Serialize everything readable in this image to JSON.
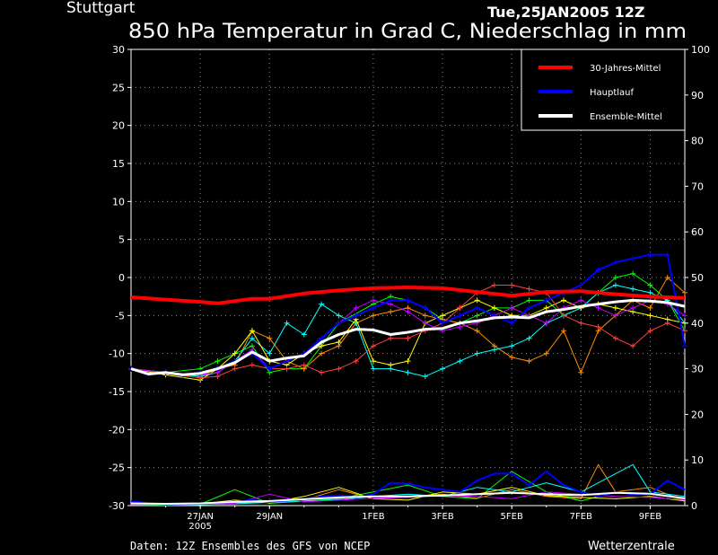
{
  "header": {
    "station": "Stuttgart",
    "run": "Tue,25JAN2005 12Z",
    "title": "850 hPa Temperatur in Grad C, Niederschlag in mm"
  },
  "footer": {
    "source": "Daten: 12Z Ensembles des GFS von NCEP",
    "brand": "Wetterzentrale"
  },
  "chart_data": {
    "type": "line",
    "grid": true,
    "legend_position": "top-right",
    "y_left": {
      "min": -30,
      "max": 30,
      "ticks": [
        30,
        25,
        20,
        15,
        10,
        5,
        0,
        -5,
        -10,
        -15,
        -20,
        -25,
        -30
      ]
    },
    "y_right": {
      "min": 0,
      "max": 100,
      "ticks": [
        100,
        90,
        80,
        70,
        60,
        50,
        40,
        30,
        20,
        10,
        0
      ]
    },
    "x": {
      "min": 0,
      "max": 16,
      "unit": "days from 25JAN 12Z"
    },
    "x_ticks": [
      {
        "at": 2,
        "label": "27JAN",
        "sub": "2005"
      },
      {
        "at": 4,
        "label": "29JAN",
        "sub": ""
      },
      {
        "at": 7,
        "label": "1FEB",
        "sub": ""
      },
      {
        "at": 9,
        "label": "3FEB",
        "sub": ""
      },
      {
        "at": 11,
        "label": "5FEB",
        "sub": ""
      },
      {
        "at": 13,
        "label": "7FEB",
        "sub": ""
      },
      {
        "at": 15,
        "label": "9FEB",
        "sub": ""
      }
    ],
    "legend": [
      {
        "name": "30-Jahres-Mittel",
        "color": "#ff0000"
      },
      {
        "name": "Hauptlauf",
        "color": "#0000ff"
      },
      {
        "name": "Ensemble-Mittel",
        "color": "#ffffff"
      }
    ],
    "series": [
      {
        "name": "30-Jahres-Mittel",
        "color": "#ff0000",
        "width": 4,
        "axis": "left",
        "markers": false,
        "x": [
          0,
          1,
          2,
          2.5,
          3,
          3.5,
          4,
          5,
          6,
          7,
          8,
          9,
          10,
          11,
          12,
          13,
          14,
          15,
          16
        ],
        "y": [
          -2.6,
          -2.9,
          -3.2,
          -3.4,
          -3.1,
          -2.8,
          -2.8,
          -2.1,
          -1.7,
          -1.4,
          -1.3,
          -1.4,
          -1.9,
          -2.4,
          -1.9,
          -1.8,
          -2.2,
          -2.5,
          -2.7
        ]
      },
      {
        "name": "Hauptlauf",
        "color": "#0000ff",
        "width": 2,
        "axis": "left",
        "markers": true,
        "x": [
          0,
          0.5,
          1,
          1.5,
          2,
          2.5,
          3,
          3.5,
          4,
          4.5,
          5,
          5.5,
          6,
          6.5,
          7,
          7.5,
          8,
          8.5,
          9,
          9.5,
          10,
          10.5,
          11,
          11.5,
          12,
          12.5,
          13,
          13.5,
          14,
          14.5,
          15,
          15.5,
          16
        ],
        "y": [
          -12,
          -12.8,
          -12.5,
          -12.9,
          -12.5,
          -12,
          -11,
          -10,
          -12,
          -11,
          -10,
          -8,
          -6,
          -5,
          -4,
          -3,
          -3,
          -4,
          -6,
          -5,
          -4,
          -5,
          -6,
          -4,
          -3,
          -2,
          -1,
          1,
          2,
          2.5,
          3,
          3,
          -9
        ]
      },
      {
        "name": "Ensemble-Mittel",
        "color": "#ffffff",
        "width": 3,
        "axis": "left",
        "markers": false,
        "x": [
          0,
          0.5,
          1,
          1.5,
          2,
          2.5,
          3,
          3.5,
          4,
          4.5,
          5,
          5.5,
          6,
          6.5,
          7,
          7.5,
          8,
          8.5,
          9,
          9.5,
          10,
          10.5,
          11,
          11.5,
          12,
          12.5,
          13,
          13.5,
          14,
          14.5,
          15,
          15.5,
          16
        ],
        "y": [
          -12,
          -12.7,
          -12.5,
          -12.8,
          -12.6,
          -12,
          -11.2,
          -9.8,
          -11,
          -10.6,
          -10.3,
          -8.5,
          -7.5,
          -6.8,
          -6.9,
          -7.5,
          -7.2,
          -6.8,
          -6.7,
          -6,
          -5.7,
          -5.3,
          -5.2,
          -5.3,
          -4.5,
          -4.2,
          -3.8,
          -3.5,
          -3.2,
          -3,
          -3.1,
          -3.3,
          -3.8
        ]
      },
      {
        "name": "",
        "color": "#00ff00",
        "width": 1,
        "axis": "left",
        "markers": true,
        "x": [
          0,
          1,
          2,
          2.5,
          3,
          3.5,
          4,
          4.5,
          5,
          6,
          7,
          7.5,
          8,
          8.5,
          9,
          9.5,
          10,
          10.5,
          11,
          11.5,
          12,
          12.5,
          13,
          13.5,
          14,
          14.5,
          15,
          15.5,
          16
        ],
        "y": [
          -12,
          -12.5,
          -12,
          -11,
          -10,
          -9,
          -12.5,
          -12,
          -12,
          -6,
          -3.5,
          -2.5,
          -3,
          -4,
          -5.5,
          -6,
          -5,
          -4,
          -4,
          -3,
          -3,
          -5,
          -4,
          -2,
          0,
          0.5,
          -1,
          -3,
          -7
        ]
      },
      {
        "name": "",
        "color": "#ff8c00",
        "width": 1,
        "axis": "left",
        "markers": true,
        "x": [
          0,
          1,
          2,
          2.5,
          3,
          3.5,
          4,
          4.5,
          5,
          5.5,
          6,
          6.5,
          7,
          7.5,
          8,
          8.5,
          9,
          9.5,
          10,
          10.5,
          11,
          11.5,
          12,
          12.5,
          13,
          13.5,
          14,
          14.5,
          15,
          15.5,
          16
        ],
        "y": [
          -12,
          -12.5,
          -13,
          -12,
          -11.5,
          -7,
          -8,
          -11,
          -12,
          -10,
          -9,
          -6,
          -5,
          -4.5,
          -4,
          -5,
          -5.5,
          -6,
          -7,
          -9,
          -10.5,
          -11,
          -10,
          -7,
          -12.5,
          -7,
          -5,
          -3,
          -4,
          0,
          -2
        ]
      },
      {
        "name": "",
        "color": "#00ffff",
        "width": 1,
        "axis": "left",
        "markers": true,
        "x": [
          0,
          1,
          2,
          2.5,
          3,
          3.5,
          4,
          4.5,
          5,
          5.5,
          6,
          6.5,
          7,
          7.5,
          8,
          8.5,
          9,
          9.5,
          10,
          10.5,
          11,
          11.5,
          12,
          12.5,
          13,
          13.5,
          14,
          14.5,
          15,
          15.5,
          16
        ],
        "y": [
          -12,
          -12.5,
          -13,
          -12.5,
          -11,
          -8,
          -10,
          -6,
          -7.5,
          -3.5,
          -5,
          -6,
          -12,
          -12,
          -12.5,
          -13,
          -12,
          -11,
          -10,
          -9.5,
          -9,
          -8,
          -6,
          -5,
          -4,
          -2,
          -1,
          -1.5,
          -2,
          -3,
          -6
        ]
      },
      {
        "name": "",
        "color": "#ffff00",
        "width": 1,
        "axis": "left",
        "markers": true,
        "x": [
          0,
          1,
          2,
          2.5,
          3,
          3.5,
          4,
          4.5,
          5,
          5.5,
          6,
          6.5,
          7,
          7.5,
          8,
          8.5,
          9,
          9.5,
          10,
          10.5,
          11,
          11.5,
          12,
          12.5,
          13,
          13.5,
          14,
          14.5,
          15,
          15.5,
          16
        ],
        "y": [
          -12,
          -12.8,
          -13.5,
          -12,
          -10,
          -7,
          -11,
          -11.5,
          -10,
          -9,
          -8.5,
          -5.5,
          -11,
          -11.5,
          -11,
          -6,
          -5,
          -4,
          -3,
          -4,
          -5,
          -5,
          -4,
          -3,
          -4,
          -3.5,
          -4,
          -4.5,
          -5,
          -5.5,
          -6
        ]
      },
      {
        "name": "",
        "color": "#ff4040",
        "width": 1,
        "axis": "left",
        "markers": true,
        "x": [
          0,
          1,
          2,
          2.5,
          3,
          3.5,
          4,
          4.5,
          5,
          5.5,
          6,
          6.5,
          7,
          7.5,
          8,
          8.5,
          9,
          9.5,
          10,
          10.5,
          11,
          11.5,
          12,
          12.5,
          13,
          13.5,
          14,
          14.5,
          15,
          15.5,
          16
        ],
        "y": [
          -12,
          -12.6,
          -13.2,
          -13,
          -12,
          -11.5,
          -12,
          -12,
          -11.5,
          -12.5,
          -12,
          -11,
          -9,
          -8,
          -8,
          -7,
          -6,
          -4,
          -2,
          -1,
          -1,
          -1.5,
          -2,
          -5,
          -6,
          -6.5,
          -8,
          -9,
          -7,
          -6,
          -7
        ]
      },
      {
        "name": "",
        "color": "#c000ff",
        "width": 1,
        "axis": "left",
        "markers": true,
        "x": [
          0,
          1,
          2,
          2.5,
          3,
          3.5,
          4,
          4.5,
          5,
          5.5,
          6,
          6.5,
          7,
          7.5,
          8,
          8.5,
          9,
          9.5,
          10,
          10.5,
          11,
          11.5,
          12,
          12.5,
          13,
          13.5,
          14,
          14.5,
          15,
          15.5,
          16
        ],
        "y": [
          -12,
          -12.5,
          -12.8,
          -12.5,
          -11,
          -9.5,
          -12,
          -11,
          -10,
          -8,
          -6,
          -4,
          -3,
          -3.5,
          -4.5,
          -6,
          -7,
          -6.5,
          -6,
          -5,
          -4,
          -5,
          -6,
          -4,
          -3,
          -4,
          -5,
          -4,
          -3,
          -3.5,
          -5
        ]
      },
      {
        "name": "Niederschlag Hauptlauf",
        "color": "#0000ff",
        "width": 2,
        "axis": "right",
        "markers": false,
        "x": [
          0,
          0.5,
          1,
          1.5,
          2,
          2.5,
          3,
          3.5,
          4,
          4.5,
          5,
          5.5,
          6,
          6.5,
          7,
          7.5,
          8,
          8.5,
          9,
          9.5,
          10,
          10.5,
          11,
          11.5,
          12,
          12.5,
          13,
          13.5,
          14,
          14.5,
          15,
          15.5,
          16
        ],
        "y": [
          1,
          0.5,
          0.3,
          0.3,
          0.4,
          0.6,
          0.8,
          1.2,
          0.8,
          1.1,
          1.3,
          2,
          2.2,
          1.8,
          2.5,
          5,
          4.8,
          4,
          3.5,
          3,
          5.5,
          7,
          7,
          4.5,
          7.5,
          4.5,
          3,
          2,
          3,
          2.5,
          2.5,
          5.5,
          3.5
        ]
      },
      {
        "name": "Niederschlag Ensemble-Mittel",
        "color": "#ffffff",
        "width": 2,
        "axis": "right",
        "markers": false,
        "x": [
          0,
          1,
          2,
          3,
          4,
          5,
          6,
          7,
          8,
          9,
          10,
          11,
          12,
          13,
          14,
          15,
          16
        ],
        "y": [
          0.5,
          0.4,
          0.5,
          0.8,
          1,
          1.4,
          1.8,
          2,
          2,
          2.2,
          2.5,
          2.8,
          2.5,
          2.3,
          2.8,
          2.6,
          1.6
        ]
      },
      {
        "name": "",
        "color": "#ff8c00",
        "width": 1,
        "axis": "right",
        "markers": false,
        "x": [
          0,
          1,
          2,
          3,
          4,
          5,
          6,
          7,
          8,
          9,
          10,
          11,
          12,
          13,
          13.5,
          14,
          15,
          16
        ],
        "y": [
          0.3,
          0.2,
          0.4,
          0.6,
          0.8,
          1.2,
          3.5,
          1.5,
          2,
          2.5,
          1.6,
          3.5,
          2,
          1.5,
          9,
          3,
          4,
          1
        ]
      },
      {
        "name": "",
        "color": "#00ff00",
        "width": 1,
        "axis": "right",
        "markers": false,
        "x": [
          0,
          1,
          2,
          3,
          4,
          5,
          6,
          7,
          8,
          9,
          10,
          11,
          12,
          13,
          14,
          15,
          16
        ],
        "y": [
          0.2,
          0.1,
          0.3,
          3.5,
          0.5,
          1,
          1.5,
          3,
          4.5,
          2,
          1.5,
          7.5,
          3,
          1,
          3,
          2.5,
          1.5
        ]
      },
      {
        "name": "",
        "color": "#00ffff",
        "width": 1,
        "axis": "right",
        "markers": false,
        "x": [
          0,
          1,
          2,
          3,
          4,
          5,
          6,
          7,
          8,
          9,
          10,
          11,
          12,
          13,
          14,
          14.5,
          15,
          16
        ],
        "y": [
          0.4,
          0.3,
          0.2,
          0.4,
          0.7,
          1,
          1.3,
          2,
          2.5,
          2,
          4,
          3,
          5,
          3,
          7,
          9,
          3,
          2
        ]
      },
      {
        "name": "",
        "color": "#ffff00",
        "width": 1,
        "axis": "right",
        "markers": false,
        "x": [
          0,
          1,
          2,
          3,
          4,
          5,
          6,
          7,
          8,
          9,
          10,
          11,
          12,
          13,
          14,
          15,
          16
        ],
        "y": [
          0.3,
          0.5,
          0.4,
          1.2,
          0.6,
          2,
          4,
          1.5,
          1.2,
          3,
          2.5,
          4,
          2.2,
          1.8,
          1.5,
          2,
          1
        ]
      },
      {
        "name": "",
        "color": "#c000ff",
        "width": 1,
        "axis": "right",
        "markers": false,
        "x": [
          0,
          1,
          2,
          3,
          4,
          5,
          6,
          7,
          8,
          9,
          10,
          11,
          12,
          13,
          14,
          15,
          16
        ],
        "y": [
          0.2,
          0.3,
          0.3,
          0.5,
          2.5,
          0.8,
          1.2,
          1.6,
          1.8,
          2.2,
          2,
          1.5,
          3,
          2.5,
          2,
          1.8,
          1.3
        ]
      }
    ]
  }
}
